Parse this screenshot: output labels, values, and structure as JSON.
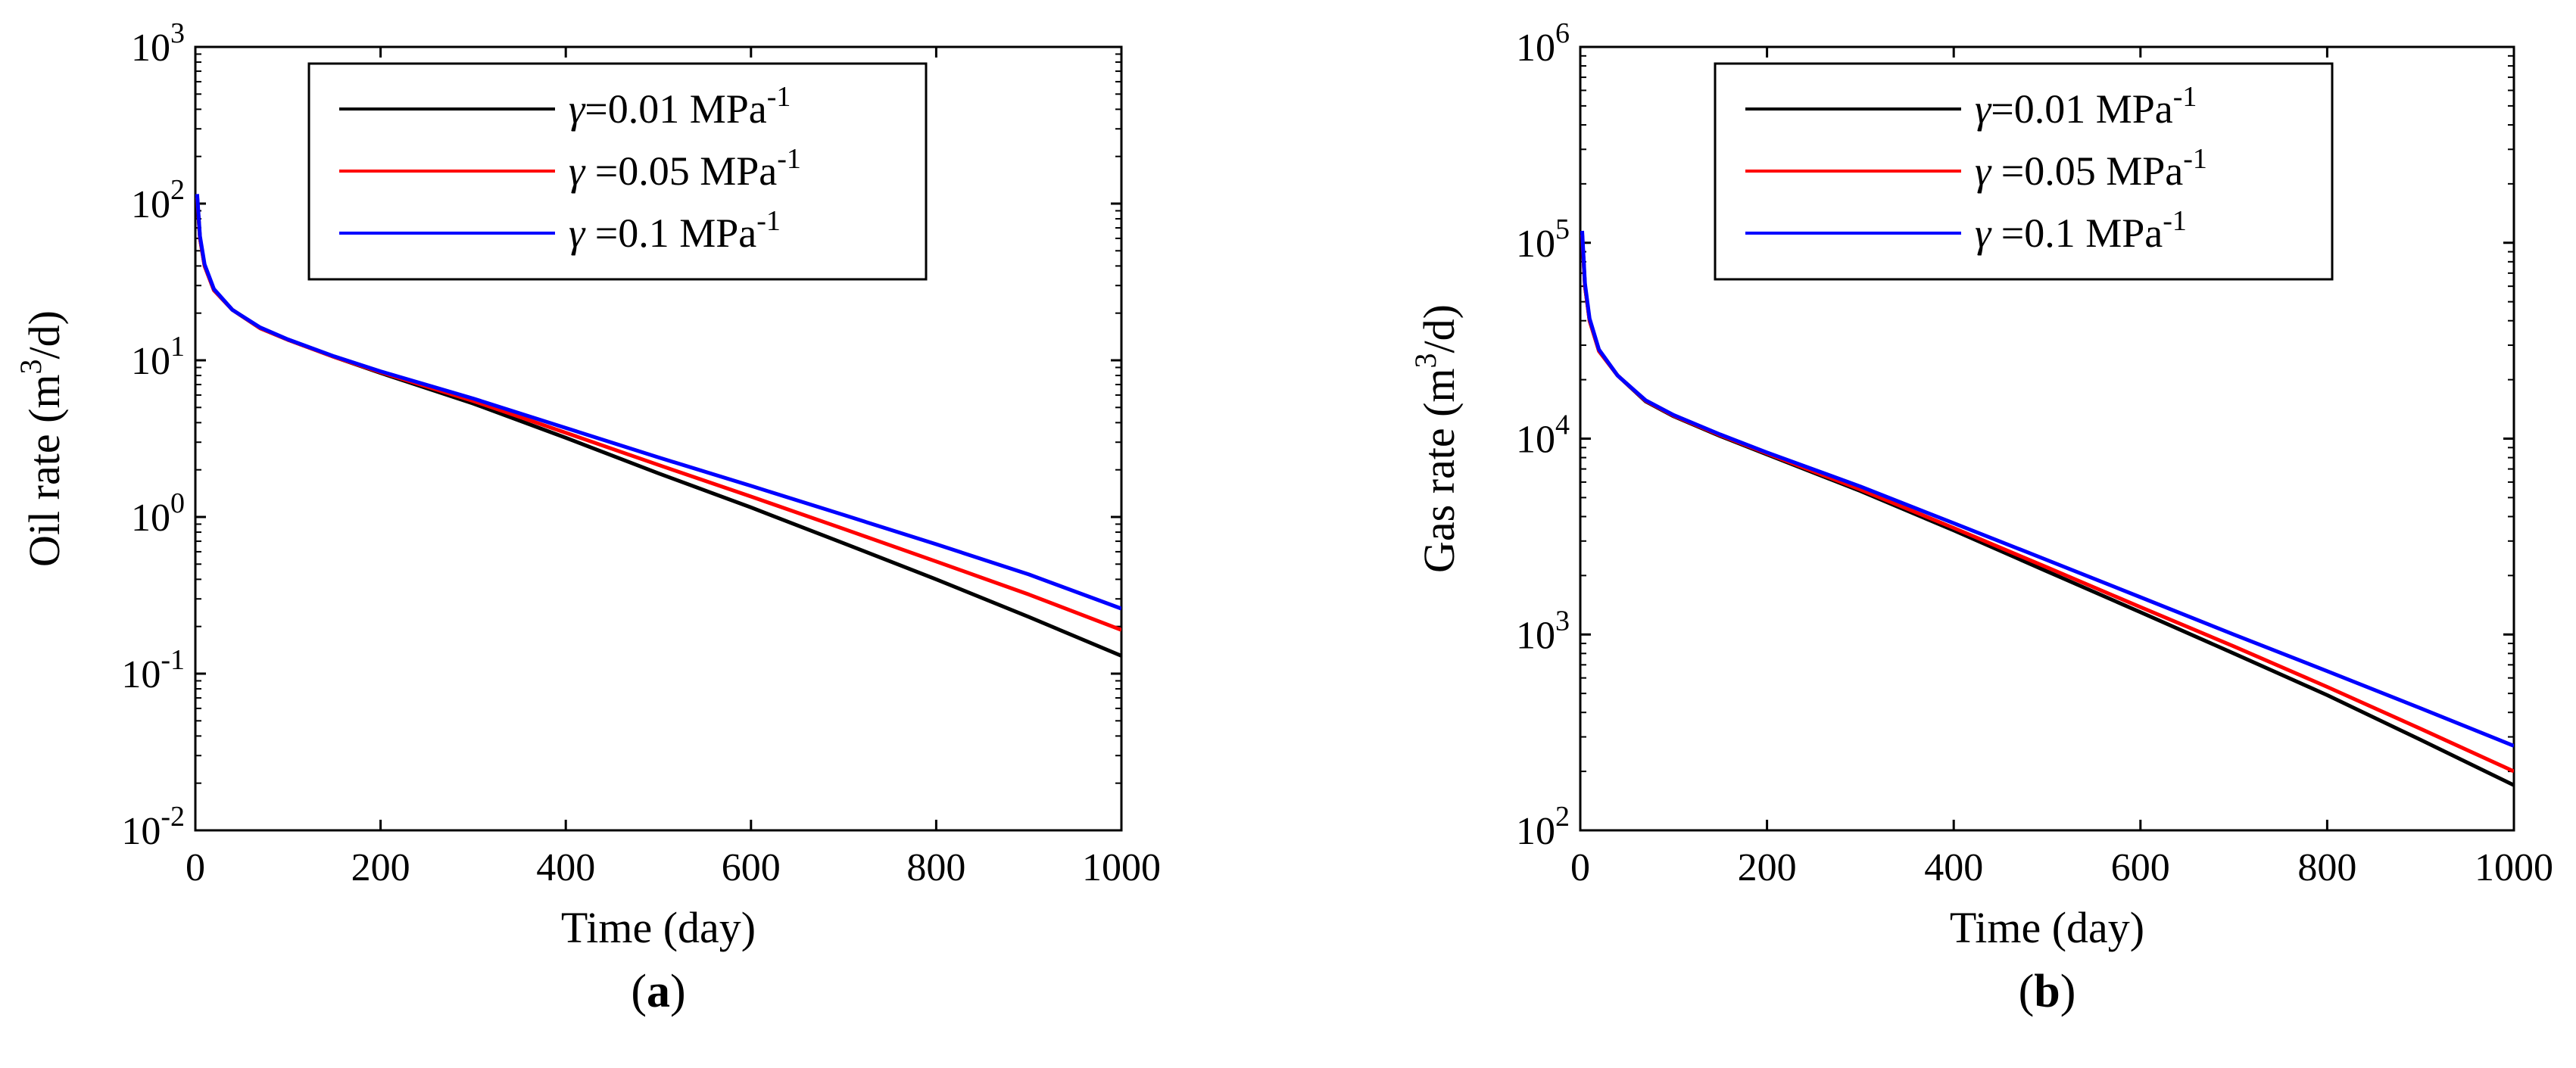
{
  "chart_data": [
    {
      "type": "line",
      "panel_label": "(a)",
      "panel_letter": "a",
      "xlabel": "Time (day)",
      "ylabel_prefix": "Oil rate (m",
      "ylabel_sup": "3",
      "ylabel_suffix": "/d)",
      "xscale": "linear",
      "yscale": "log",
      "xlim": [
        0,
        1000
      ],
      "ylim": [
        0.01,
        1000
      ],
      "xticks": [
        0,
        200,
        400,
        600,
        800,
        1000
      ],
      "xtick_labels": [
        "0",
        "200",
        "400",
        "600",
        "800",
        "1000"
      ],
      "yticks": [
        0.01,
        0.1,
        1,
        10,
        100,
        1000
      ],
      "ytick_base": "10",
      "ytick_exponents": [
        "-2",
        "-1",
        "0",
        "1",
        "2",
        "3"
      ],
      "legend_position": "top",
      "x": [
        2,
        5,
        10,
        20,
        40,
        70,
        100,
        150,
        200,
        300,
        400,
        500,
        600,
        700,
        800,
        900,
        1000
      ],
      "series": [
        {
          "name": "γ=0.01 MPa-1",
          "symbol": "γ",
          "label_text": "=0.01 MPa",
          "label_sup": "-1",
          "color": "#000000",
          "values": [
            110,
            60,
            40,
            28,
            21,
            16,
            13.5,
            10.5,
            8.3,
            5.3,
            3.2,
            1.9,
            1.15,
            0.68,
            0.4,
            0.23,
            0.13
          ]
        },
        {
          "name": "γ =0.05 MPa-1",
          "symbol": "γ",
          "label_text": " =0.05 MPa",
          "label_sup": "-1",
          "color": "#ff0000",
          "values": [
            110,
            60,
            40,
            28,
            21,
            16,
            13.5,
            10.5,
            8.4,
            5.5,
            3.45,
            2.15,
            1.35,
            0.84,
            0.52,
            0.32,
            0.19
          ]
        },
        {
          "name": "γ =0.1 MPa-1",
          "symbol": "γ",
          "label_text": " =0.1 MPa",
          "label_sup": "-1",
          "color": "#0000ff",
          "values": [
            115,
            62,
            41,
            28.5,
            21,
            16.2,
            13.6,
            10.6,
            8.5,
            5.7,
            3.7,
            2.4,
            1.58,
            1.03,
            0.67,
            0.43,
            0.26
          ]
        }
      ]
    },
    {
      "type": "line",
      "panel_label": "(b)",
      "panel_letter": "b",
      "xlabel": "Time (day)",
      "ylabel_prefix": "Gas rate (m",
      "ylabel_sup": "3",
      "ylabel_suffix": "/d)",
      "xscale": "linear",
      "yscale": "log",
      "xlim": [
        0,
        1000
      ],
      "ylim": [
        100,
        1000000
      ],
      "xticks": [
        0,
        200,
        400,
        600,
        800,
        1000
      ],
      "xtick_labels": [
        "0",
        "200",
        "400",
        "600",
        "800",
        "1000"
      ],
      "yticks": [
        100,
        1000,
        10000,
        100000,
        1000000
      ],
      "ytick_base": "10",
      "ytick_exponents": [
        "2",
        "3",
        "4",
        "5",
        "6"
      ],
      "legend_position": "top",
      "x": [
        2,
        5,
        10,
        20,
        40,
        70,
        100,
        150,
        200,
        300,
        400,
        500,
        600,
        700,
        800,
        900,
        1000
      ],
      "series": [
        {
          "name": "γ=0.01 MPa-1",
          "symbol": "γ",
          "label_text": "=0.01 MPa",
          "label_sup": "-1",
          "color": "#000000",
          "values": [
            110000,
            60000,
            40000,
            28000,
            21000,
            15500,
            13000,
            10300,
            8300,
            5400,
            3400,
            2100,
            1300,
            800,
            490,
            290,
            170
          ]
        },
        {
          "name": "γ =0.05 MPa-1",
          "symbol": "γ",
          "label_text": " =0.05 MPa",
          "label_sup": "-1",
          "color": "#ff0000",
          "values": [
            110000,
            60000,
            40000,
            28000,
            21000,
            15600,
            13100,
            10400,
            8400,
            5500,
            3500,
            2200,
            1380,
            870,
            540,
            330,
            200
          ]
        },
        {
          "name": "γ =0.1 MPa-1",
          "symbol": "γ",
          "label_text": " =0.1 MPa",
          "label_sup": "-1",
          "color": "#0000ff",
          "values": [
            115000,
            62000,
            41000,
            28500,
            21000,
            15700,
            13200,
            10500,
            8500,
            5700,
            3700,
            2400,
            1550,
            1000,
            650,
            420,
            270
          ]
        }
      ]
    }
  ]
}
